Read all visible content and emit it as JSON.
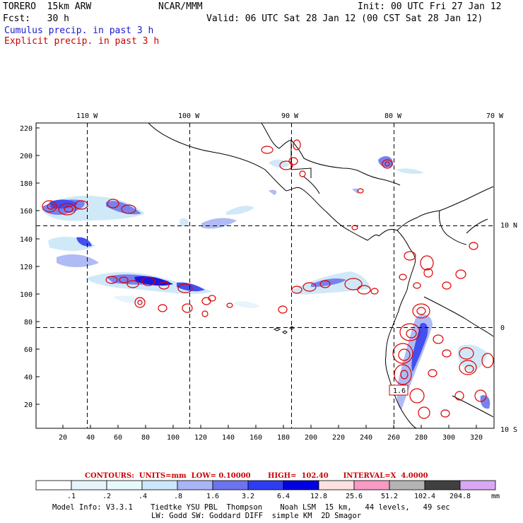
{
  "header": {
    "model": "TORERO  15km ARW",
    "org": "NCAR/MMM",
    "init": "Init: 00 UTC Fri 27 Jan 12",
    "fcst": "Fcst:   30 h",
    "valid": "Valid: 06 UTC Sat 28 Jan 12 (00 CST Sat 28 Jan 12)",
    "field1": "Cumulus precip. in past 3 h",
    "field2": "Explicit precip. in past 3 h"
  },
  "map": {
    "top_lon_labels": [
      "110 W",
      "100 W",
      "90 W",
      "80 W",
      "70 W"
    ],
    "right_lat_labels": [
      "10 N",
      "0",
      "10 S"
    ],
    "y_ticks": [
      "20",
      "40",
      "60",
      "80",
      "100",
      "120",
      "140",
      "160",
      "180",
      "200",
      "220"
    ],
    "x_ticks": [
      "20",
      "40",
      "60",
      "80",
      "100",
      "120",
      "140",
      "160",
      "180",
      "200",
      "220",
      "240",
      "260",
      "280",
      "300",
      "320"
    ],
    "annotation": "1.6"
  },
  "legend": {
    "contours_line": "CONTOURS:  UNITS=mm  LOW= 0.10000       HIGH=  102.40      INTERVAL=X  4.0000",
    "bins": [
      ".1",
      ".2",
      ".4",
      ".8",
      "1.6",
      "3.2",
      "6.4",
      "12.8",
      "25.6",
      "51.2",
      "102.4",
      "204.8"
    ],
    "units": "mm",
    "colors": [
      "#ffffff",
      "#ffffff",
      "#e6f3fb",
      "#e6f9fb",
      "#cbe7f9",
      "#a7b4f5",
      "#6b74ec",
      "#2f3df0",
      "#0000e0",
      "#fde0e0",
      "#f79ac4",
      "#b4b4b4",
      "#404040",
      "#d9a8f3"
    ]
  },
  "footer": {
    "line1": "Model Info: V3.3.1    Tiedtke YSU PBL  Thompson    Noah LSM  15 km,   44 levels,   49 sec",
    "line2": "LW: Godd SW: Goddard DIFF  simple KM  2D Smagor"
  }
}
